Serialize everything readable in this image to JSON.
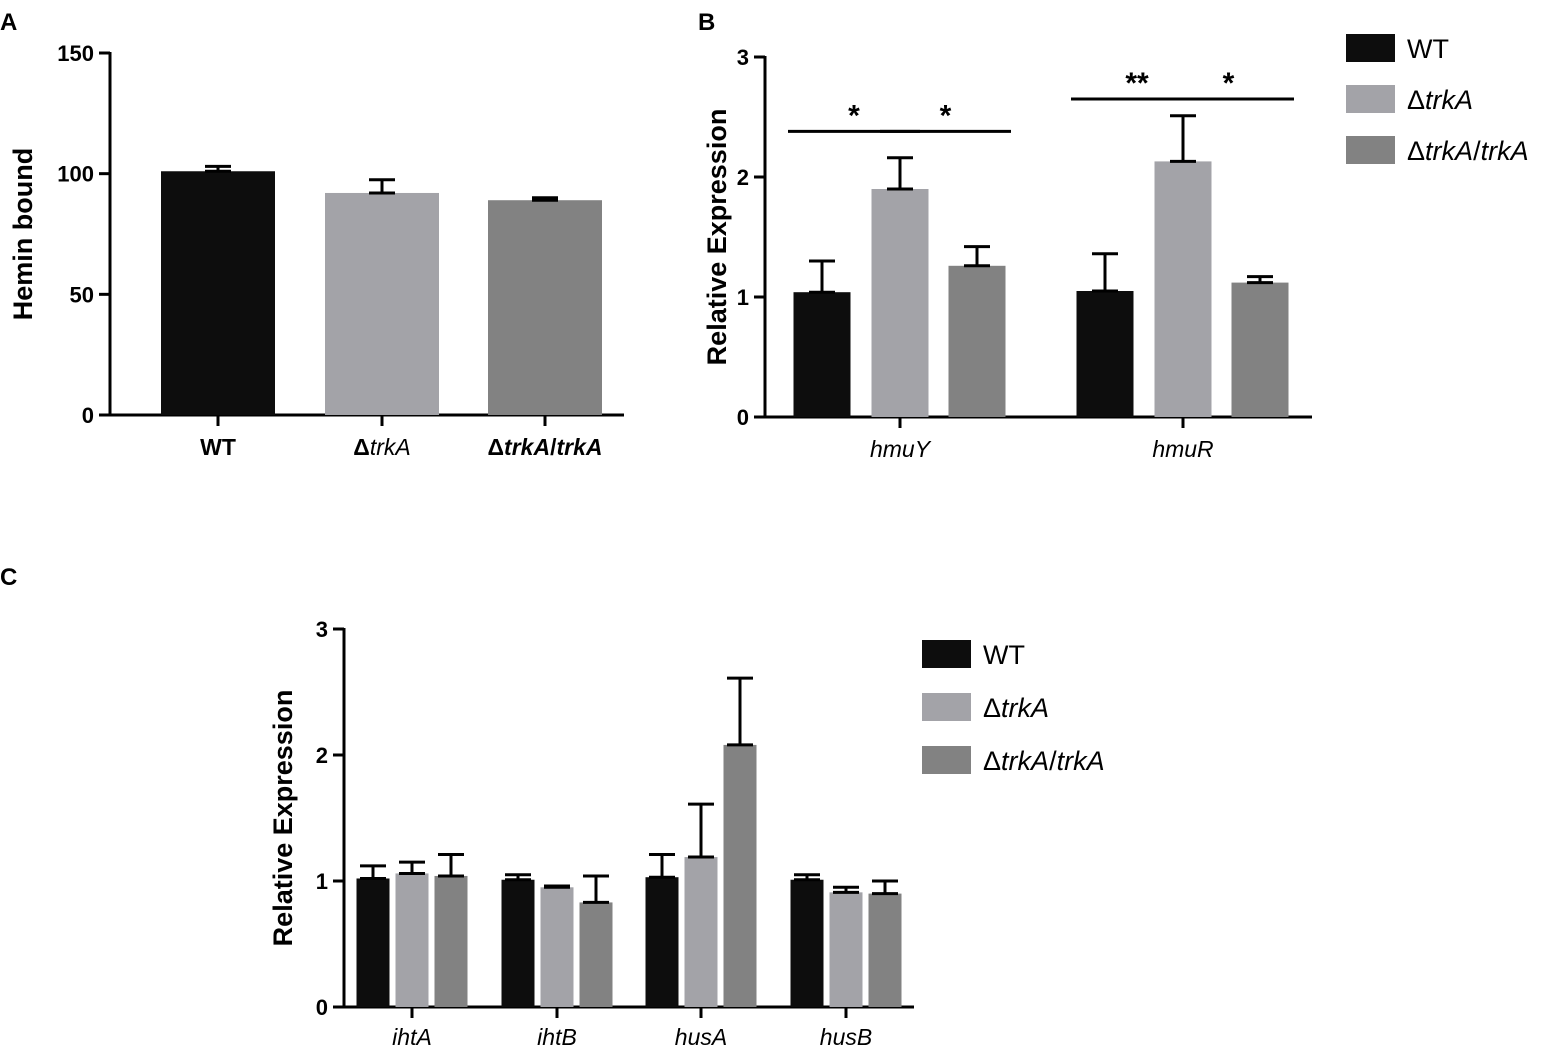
{
  "colors": {
    "wt": "#0d0d0d",
    "trka": "#a3a3a8",
    "comp": "#828282",
    "axis": "#000000"
  },
  "series_names": [
    "WT",
    "ΔtrkA",
    "ΔtrkA/trkA"
  ],
  "legend_parts": [
    [
      {
        "t": "WT",
        "i": false
      }
    ],
    [
      {
        "t": "Δ",
        "i": false
      },
      {
        "t": "trkA",
        "i": true
      }
    ],
    [
      {
        "t": "Δ",
        "i": false
      },
      {
        "t": "trkA",
        "i": true
      },
      {
        "t": "/",
        "i": false
      },
      {
        "t": "trkA",
        "i": true
      }
    ]
  ],
  "chart_data": [
    {
      "panel": "A",
      "type": "bar",
      "title": "",
      "ylabel": "Hemin bound",
      "xlabel": "",
      "ylim": [
        0,
        150
      ],
      "yticks": [
        0,
        50,
        100,
        150
      ],
      "categories": [
        "WT",
        "ΔtrkA",
        "ΔtrkA/trkA"
      ],
      "category_parts": [
        [
          {
            "t": "WT",
            "i": false,
            "b": true
          }
        ],
        [
          {
            "t": "Δ",
            "i": false,
            "b": true
          },
          {
            "t": "trkA",
            "i": true,
            "b": false
          }
        ],
        [
          {
            "t": "Δ",
            "i": false,
            "b": true
          },
          {
            "t": "trkA",
            "i": true,
            "b": true
          },
          {
            "t": "/",
            "i": false,
            "b": true
          },
          {
            "t": "trkA",
            "i": true,
            "b": true
          }
        ]
      ],
      "values": [
        101,
        92,
        89
      ],
      "errors": [
        2,
        5.5,
        1
      ],
      "legend": false
    },
    {
      "panel": "B",
      "type": "bar",
      "title": "",
      "ylabel": "Relative Expression",
      "xlabel": "",
      "ylim": [
        0,
        3
      ],
      "yticks": [
        0,
        1,
        2,
        3
      ],
      "categories": [
        "hmuY",
        "hmuR"
      ],
      "series": [
        {
          "name": "WT",
          "values": [
            1.04,
            1.05
          ],
          "errors": [
            0.26,
            0.31
          ]
        },
        {
          "name": "ΔtrkA",
          "values": [
            1.9,
            2.13
          ],
          "errors": [
            0.26,
            0.38
          ]
        },
        {
          "name": "ΔtrkA/trkA",
          "values": [
            1.26,
            1.12
          ],
          "errors": [
            0.16,
            0.05
          ]
        }
      ],
      "significance": [
        {
          "group": 0,
          "from": 0,
          "to": 1,
          "label": "*",
          "y": 2.38
        },
        {
          "group": 0,
          "from": 1,
          "to": 2,
          "label": "*",
          "y": 2.38
        },
        {
          "group": 1,
          "from": 0,
          "to": 1,
          "label": "**",
          "y": 2.65
        },
        {
          "group": 1,
          "from": 1,
          "to": 2,
          "label": "*",
          "y": 2.65
        }
      ],
      "legend": "right"
    },
    {
      "panel": "C",
      "type": "bar",
      "title": "",
      "ylabel": "Relative Expression",
      "xlabel": "",
      "ylim": [
        0,
        3
      ],
      "yticks": [
        0,
        1,
        2,
        3
      ],
      "categories": [
        "ihtA",
        "ihtB",
        "husA",
        "husB"
      ],
      "series": [
        {
          "name": "WT",
          "values": [
            1.02,
            1.01,
            1.03,
            1.01
          ],
          "errors": [
            0.1,
            0.04,
            0.18,
            0.04
          ]
        },
        {
          "name": "ΔtrkA",
          "values": [
            1.06,
            0.95,
            1.19,
            0.91
          ],
          "errors": [
            0.09,
            0.01,
            0.42,
            0.04
          ]
        },
        {
          "name": "ΔtrkA/trkA",
          "values": [
            1.04,
            0.83,
            2.08,
            0.9
          ],
          "errors": [
            0.17,
            0.21,
            0.53,
            0.1
          ]
        }
      ],
      "legend": "right"
    }
  ]
}
